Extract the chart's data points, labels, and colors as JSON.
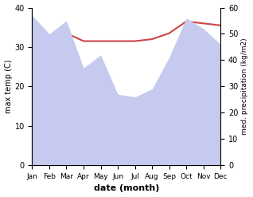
{
  "months": [
    "Jan",
    "Feb",
    "Mar",
    "Apr",
    "May",
    "Jun",
    "Jul",
    "Aug",
    "Sep",
    "Oct",
    "Nov",
    "Dec"
  ],
  "temp_max": [
    32.5,
    32.0,
    33.5,
    31.5,
    31.5,
    31.5,
    31.5,
    32.0,
    33.5,
    36.5,
    36.0,
    35.5
  ],
  "precip": [
    57,
    50,
    55,
    37,
    42,
    27,
    26,
    29,
    41,
    56,
    52,
    46
  ],
  "temp_color": "#cc4444",
  "precip_fill_color": "#c5caee",
  "bg_color": "#ffffff",
  "xlabel": "date (month)",
  "ylabel_left": "max temp (C)",
  "ylabel_right": "med. precipitation (kg/m2)",
  "ylim_left": [
    0,
    40
  ],
  "ylim_right": [
    0,
    60
  ],
  "yticks_left": [
    0,
    10,
    20,
    30,
    40
  ],
  "yticks_right": [
    0,
    10,
    20,
    30,
    40,
    50,
    60
  ]
}
